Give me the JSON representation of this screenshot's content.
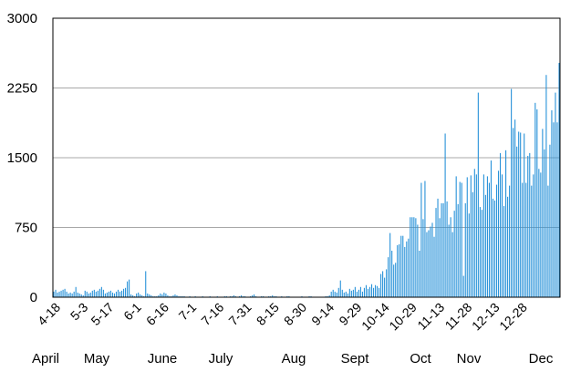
{
  "chart_data": {
    "type": "bar",
    "title": "",
    "xlabel": "",
    "ylabel": "",
    "ylim": [
      0,
      3000
    ],
    "yticks": [
      "0",
      "750",
      "1500",
      "2250",
      "3000"
    ],
    "grid": "horizontal",
    "bar_color": "#2a93d9",
    "x_start_date": "2020-04-16",
    "x_ticks": [
      "4-18",
      "5-3",
      "5-17",
      "6-1",
      "6-16",
      "7-1",
      "7-16",
      "7-31",
      "8-15",
      "8-30",
      "9-14",
      "9-29",
      "10-14",
      "10-29",
      "11-13",
      "11-28",
      "12-13",
      "12-28"
    ],
    "month_labels": [
      "April",
      "May",
      "June",
      "July",
      "Aug",
      "Sept",
      "Oct",
      "Nov",
      "Dec"
    ],
    "values": [
      60,
      80,
      50,
      60,
      70,
      80,
      90,
      60,
      40,
      50,
      40,
      60,
      110,
      50,
      40,
      30,
      20,
      70,
      60,
      40,
      50,
      70,
      80,
      60,
      70,
      90,
      110,
      80,
      40,
      50,
      60,
      70,
      50,
      40,
      60,
      80,
      60,
      70,
      90,
      100,
      170,
      190,
      30,
      20,
      10,
      40,
      50,
      30,
      20,
      10,
      280,
      40,
      30,
      20,
      10,
      10,
      10,
      20,
      40,
      30,
      50,
      40,
      20,
      10,
      10,
      20,
      30,
      20,
      10,
      10,
      10,
      10,
      5,
      5,
      10,
      5,
      5,
      10,
      5,
      5,
      5,
      10,
      5,
      5,
      5,
      10,
      5,
      5,
      5,
      10,
      5,
      5,
      5,
      10,
      10,
      5,
      10,
      10,
      20,
      10,
      5,
      10,
      20,
      10,
      10,
      5,
      5,
      10,
      20,
      30,
      10,
      5,
      5,
      10,
      10,
      5,
      5,
      10,
      10,
      20,
      10,
      10,
      5,
      5,
      10,
      5,
      5,
      10,
      10,
      5,
      5,
      5,
      5,
      5,
      5,
      10,
      5,
      5,
      5,
      10,
      10,
      5,
      5,
      5,
      5,
      5,
      5,
      5,
      10,
      10,
      20,
      60,
      80,
      60,
      50,
      100,
      180,
      80,
      50,
      60,
      40,
      90,
      70,
      80,
      110,
      60,
      80,
      110,
      60,
      100,
      130,
      90,
      110,
      140,
      100,
      130,
      120,
      100,
      250,
      280,
      210,
      300,
      430,
      690,
      500,
      350,
      370,
      560,
      570,
      660,
      660,
      540,
      600,
      630,
      860,
      860,
      860,
      850,
      780,
      500,
      1230,
      840,
      1250,
      700,
      720,
      760,
      800,
      650,
      960,
      1060,
      850,
      1010,
      1010,
      1760,
      1030,
      780,
      860,
      700,
      930,
      1300,
      1000,
      1240,
      1230,
      230,
      1010,
      1290,
      900,
      1310,
      1130,
      1380,
      1320,
      2200,
      970,
      940,
      1320,
      1100,
      1300,
      1230,
      1470,
      1060,
      1040,
      1210,
      1360,
      1550,
      1320,
      980,
      1580,
      1080,
      1200,
      2240,
      1820,
      1910,
      1620,
      1780,
      1770,
      1230,
      1760,
      1230,
      1520,
      1550,
      1200,
      1320,
      2090,
      2020,
      1380,
      1340,
      1810,
      1590,
      2390,
      1200,
      1640,
      2010,
      1880,
      2200,
      1880,
      2520
    ]
  }
}
